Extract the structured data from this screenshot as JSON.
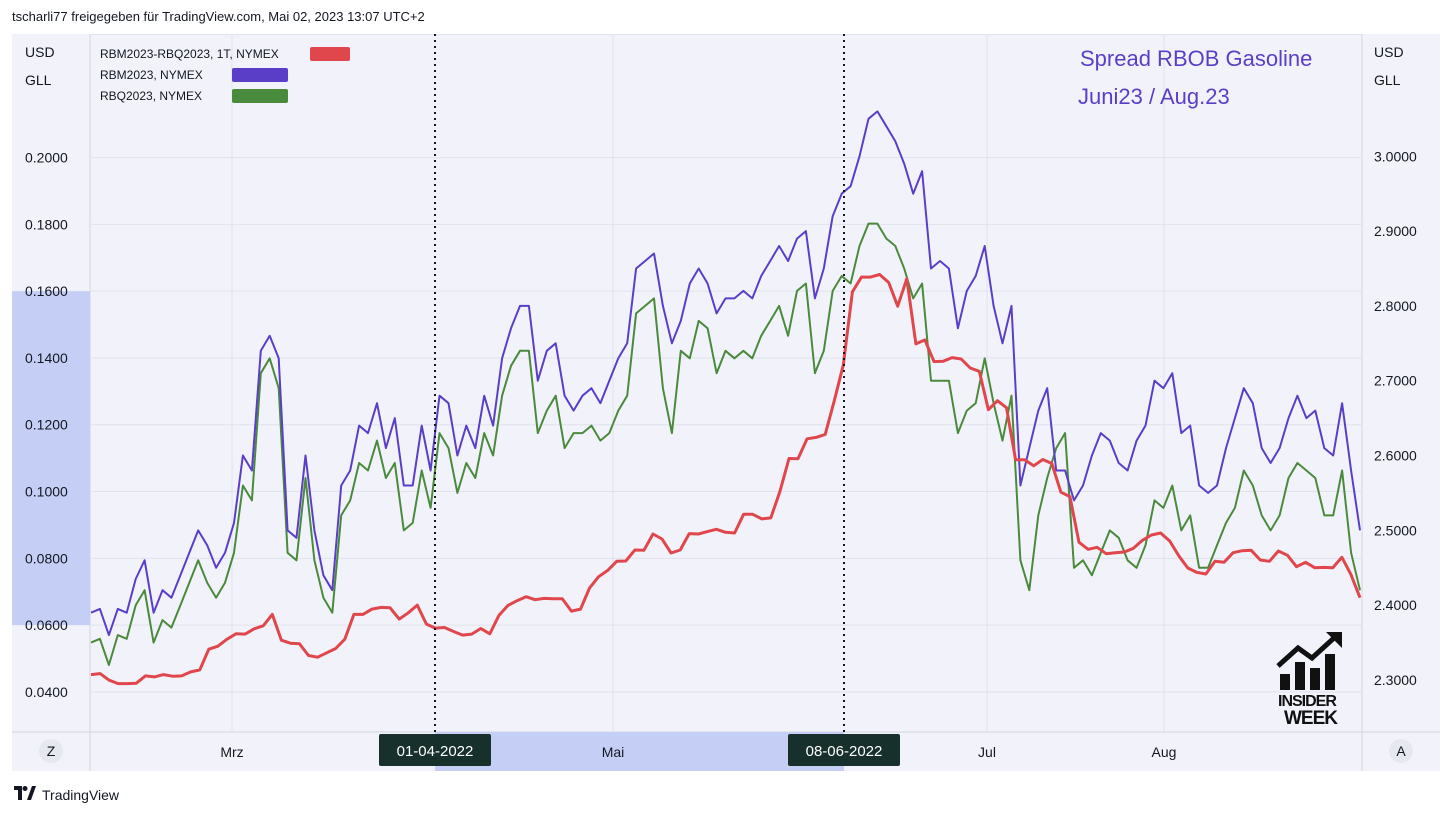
{
  "header": {
    "text": "tscharli77 freigegeben für TradingView.com, Mai 02, 2023 13:07 UTC+2"
  },
  "footer": {
    "brand": "TradingView",
    "logo_icon": "tradingview-logo-icon"
  },
  "overlay": {
    "title_line1": "Spread RBOB Gasoline",
    "title_line2": "Juni23 / Aug.23",
    "title_color": "#5b3ec8",
    "logo_line1": "INSIDER",
    "logo_line2": "WEEK"
  },
  "controls": {
    "left_button": "Z",
    "right_button": "A"
  },
  "chart_data": {
    "type": "line",
    "left_axis": {
      "unit_line1": "USD",
      "unit_line2": "GLL",
      "ticks": [
        "0.0400",
        "0.0600",
        "0.0800",
        "0.1000",
        "0.1200",
        "0.1400",
        "0.1600",
        "0.1800",
        "0.2000"
      ],
      "ylim": [
        0.028,
        0.237
      ]
    },
    "right_axis": {
      "unit_line1": "USD",
      "unit_line2": "GLL",
      "ticks": [
        "2.3000",
        "2.4000",
        "2.5000",
        "2.6000",
        "2.7000",
        "2.8000",
        "2.9000",
        "3.0000"
      ],
      "ylim": [
        2.2305,
        3.1634
      ]
    },
    "x_labels": [
      "Mrz",
      "Mai",
      "Jul",
      "Aug"
    ],
    "markers": [
      {
        "label": "01-04-2022",
        "x": 435
      },
      {
        "label": "08-06-2022",
        "x": 844
      }
    ],
    "highlight_left_range": [
      0.06,
      0.16
    ],
    "legend_position": "top-left",
    "series": [
      {
        "name": "RBM2023-RBQ2023, 1T, NYMEX",
        "color": "#e0474c",
        "axis": "left",
        "values": [
          0.0452,
          0.0455,
          0.0435,
          0.0425,
          0.0425,
          0.0426,
          0.0448,
          0.0445,
          0.0452,
          0.0447,
          0.0448,
          0.046,
          0.0466,
          0.0528,
          0.0537,
          0.0558,
          0.0574,
          0.0573,
          0.0589,
          0.0598,
          0.0632,
          0.0555,
          0.0546,
          0.0544,
          0.0509,
          0.0504,
          0.0517,
          0.053,
          0.0558,
          0.0632,
          0.0632,
          0.0648,
          0.0653,
          0.0652,
          0.0618,
          0.0637,
          0.066,
          0.0603,
          0.0591,
          0.0593,
          0.0581,
          0.057,
          0.0573,
          0.059,
          0.0574,
          0.0629,
          0.0659,
          0.0673,
          0.0685,
          0.0676,
          0.068,
          0.0679,
          0.0679,
          0.0642,
          0.0648,
          0.0711,
          0.0745,
          0.0764,
          0.0791,
          0.0792,
          0.0825,
          0.0824,
          0.0873,
          0.0858,
          0.0816,
          0.0825,
          0.0874,
          0.0873,
          0.088,
          0.0887,
          0.0878,
          0.0876,
          0.0932,
          0.0932,
          0.0918,
          0.0921,
          0.1,
          0.1099,
          0.1098,
          0.1158,
          0.1162,
          0.1171,
          0.1272,
          0.1379,
          0.1598,
          0.1642,
          0.1642,
          0.165,
          0.1626,
          0.1555,
          0.1637,
          0.1442,
          0.1454,
          0.1389,
          0.139,
          0.1401,
          0.1397,
          0.137,
          0.136,
          0.1245,
          0.1272,
          0.1251,
          0.1095,
          0.1095,
          0.1077,
          0.1096,
          0.1084,
          0.0998,
          0.0985,
          0.0848,
          0.0827,
          0.0833,
          0.0814,
          0.0817,
          0.0819,
          0.083,
          0.0854,
          0.087,
          0.0876,
          0.0852,
          0.0808,
          0.0771,
          0.0758,
          0.0753,
          0.0791,
          0.0788,
          0.0817,
          0.0823,
          0.0824,
          0.0795,
          0.0791,
          0.0822,
          0.0809,
          0.0775,
          0.0788,
          0.0772,
          0.0773,
          0.0772,
          0.0803,
          0.0752,
          0.0682
        ]
      },
      {
        "name": "RBM2023, NYMEX",
        "color": "#5b3ec8",
        "axis": "right",
        "values": [
          2.39,
          2.395,
          2.36,
          2.395,
          2.39,
          2.435,
          2.46,
          2.39,
          2.42,
          2.41,
          2.44,
          2.47,
          2.5,
          2.48,
          2.45,
          2.47,
          2.51,
          2.6,
          2.58,
          2.74,
          2.76,
          2.73,
          2.5,
          2.49,
          2.6,
          2.5,
          2.44,
          2.42,
          2.56,
          2.58,
          2.64,
          2.63,
          2.67,
          2.61,
          2.65,
          2.56,
          2.56,
          2.64,
          2.58,
          2.68,
          2.67,
          2.6,
          2.64,
          2.61,
          2.68,
          2.64,
          2.73,
          2.77,
          2.8,
          2.8,
          2.7,
          2.74,
          2.75,
          2.68,
          2.66,
          2.68,
          2.69,
          2.67,
          2.7,
          2.73,
          2.75,
          2.85,
          2.86,
          2.87,
          2.8,
          2.75,
          2.78,
          2.83,
          2.85,
          2.83,
          2.79,
          2.81,
          2.81,
          2.82,
          2.81,
          2.84,
          2.86,
          2.88,
          2.86,
          2.89,
          2.9,
          2.81,
          2.85,
          2.92,
          2.95,
          2.96,
          3.0,
          3.05,
          3.06,
          3.04,
          3.02,
          2.99,
          2.95,
          2.98,
          2.85,
          2.86,
          2.85,
          2.77,
          2.82,
          2.84,
          2.88,
          2.8,
          2.75,
          2.8,
          2.56,
          2.61,
          2.66,
          2.69,
          2.58,
          2.58,
          2.54,
          2.56,
          2.6,
          2.63,
          2.62,
          2.59,
          2.58,
          2.62,
          2.64,
          2.7,
          2.69,
          2.71,
          2.63,
          2.64,
          2.56,
          2.55,
          2.56,
          2.61,
          2.65,
          2.69,
          2.67,
          2.61,
          2.59,
          2.61,
          2.65,
          2.68,
          2.65,
          2.66,
          2.61,
          2.6,
          2.67,
          2.58,
          2.5
        ]
      },
      {
        "name": "RBQ2023, NYMEX",
        "color": "#4a8a3c",
        "axis": "right",
        "values": [
          2.35,
          2.355,
          2.32,
          2.36,
          2.355,
          2.4,
          2.42,
          2.35,
          2.38,
          2.37,
          2.4,
          2.43,
          2.46,
          2.43,
          2.41,
          2.43,
          2.47,
          2.56,
          2.54,
          2.71,
          2.73,
          2.69,
          2.47,
          2.46,
          2.57,
          2.46,
          2.41,
          2.39,
          2.52,
          2.54,
          2.59,
          2.58,
          2.62,
          2.57,
          2.59,
          2.5,
          2.51,
          2.58,
          2.53,
          2.63,
          2.61,
          2.55,
          2.59,
          2.57,
          2.63,
          2.6,
          2.68,
          2.72,
          2.74,
          2.74,
          2.63,
          2.66,
          2.68,
          2.61,
          2.63,
          2.63,
          2.64,
          2.62,
          2.63,
          2.66,
          2.68,
          2.79,
          2.8,
          2.81,
          2.69,
          2.63,
          2.74,
          2.73,
          2.78,
          2.77,
          2.71,
          2.74,
          2.73,
          2.74,
          2.73,
          2.76,
          2.78,
          2.8,
          2.76,
          2.82,
          2.83,
          2.71,
          2.74,
          2.82,
          2.84,
          2.83,
          2.88,
          2.91,
          2.91,
          2.89,
          2.88,
          2.85,
          2.81,
          2.83,
          2.7,
          2.7,
          2.7,
          2.63,
          2.66,
          2.67,
          2.73,
          2.67,
          2.62,
          2.68,
          2.46,
          2.42,
          2.52,
          2.57,
          2.61,
          2.63,
          2.45,
          2.46,
          2.44,
          2.47,
          2.5,
          2.49,
          2.46,
          2.45,
          2.48,
          2.54,
          2.53,
          2.56,
          2.5,
          2.52,
          2.45,
          2.45,
          2.48,
          2.51,
          2.53,
          2.58,
          2.56,
          2.52,
          2.5,
          2.52,
          2.57,
          2.59,
          2.58,
          2.57,
          2.52,
          2.52,
          2.58,
          2.47,
          2.42
        ]
      }
    ]
  }
}
